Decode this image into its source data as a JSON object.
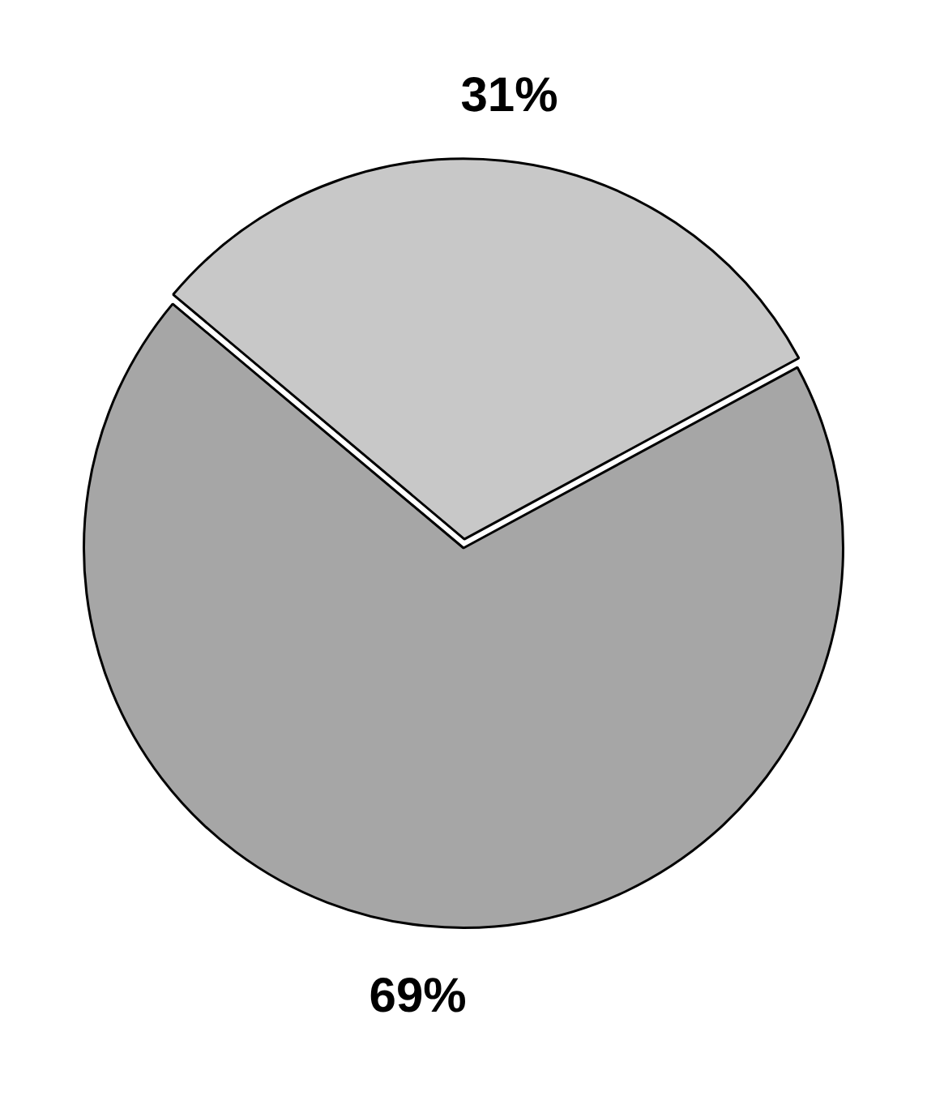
{
  "chart_data": {
    "type": "pie",
    "categories": [
      null,
      null
    ],
    "values": [
      31,
      69
    ],
    "colors": [
      "#c8c8c8",
      "#a6a6a6"
    ],
    "value_labels": [
      "31%",
      "69%"
    ],
    "legend": false
  }
}
